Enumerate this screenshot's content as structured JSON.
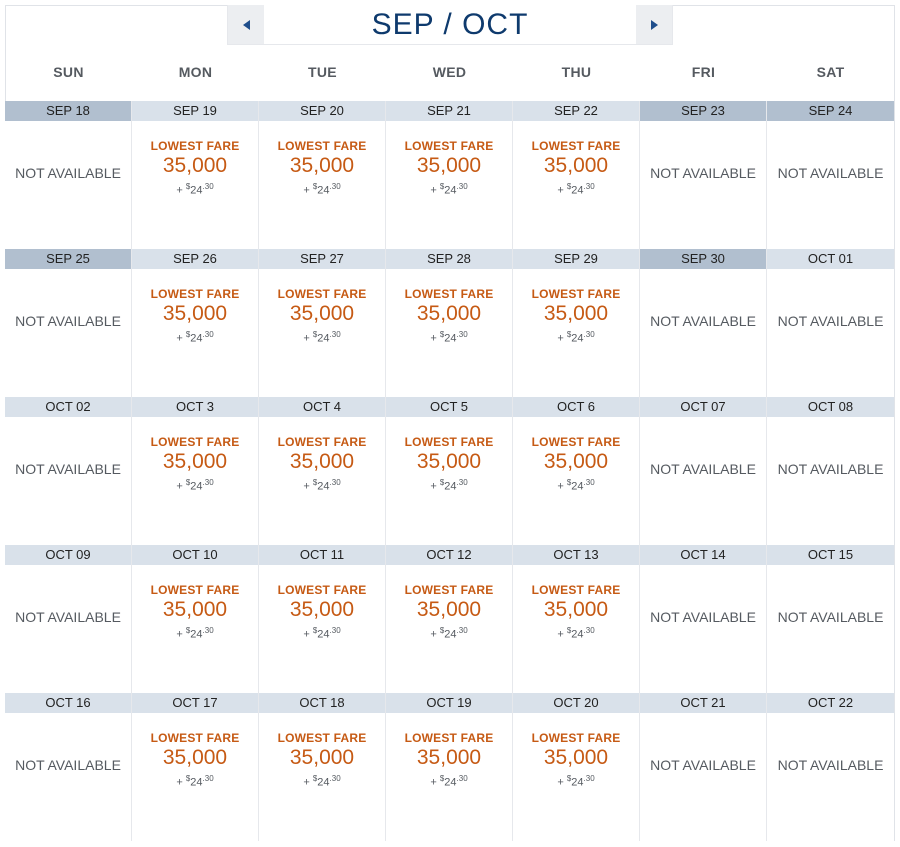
{
  "header": {
    "month_title": "SEP / OCT"
  },
  "days_of_week": [
    "SUN",
    "MON",
    "TUE",
    "WED",
    "THU",
    "FRI",
    "SAT"
  ],
  "fare_label": "LOWEST FARE",
  "miles": "35,000",
  "tax_prefix": "+ ",
  "tax_currency": "$",
  "tax_whole": "24",
  "tax_cents": ".30",
  "not_available": "NOT AVAILABLE",
  "weeks": [
    [
      "SEP 18",
      "SEP 19",
      "SEP 20",
      "SEP 21",
      "SEP 22",
      "SEP 23",
      "SEP 24"
    ],
    [
      "SEP 25",
      "SEP 26",
      "SEP 27",
      "SEP 28",
      "SEP 29",
      "SEP 30",
      "OCT 01"
    ],
    [
      "OCT 02",
      "OCT 3",
      "OCT 4",
      "OCT 5",
      "OCT 6",
      "OCT 07",
      "OCT 08"
    ],
    [
      "OCT 09",
      "OCT 10",
      "OCT 11",
      "OCT 12",
      "OCT 13",
      "OCT 14",
      "OCT 15"
    ],
    [
      "OCT 16",
      "OCT 17",
      "OCT 18",
      "OCT 19",
      "OCT 20",
      "OCT 21",
      "OCT 22"
    ]
  ],
  "available": [
    [
      false,
      true,
      true,
      true,
      true,
      false,
      false
    ],
    [
      false,
      true,
      true,
      true,
      true,
      false,
      false
    ],
    [
      false,
      true,
      true,
      true,
      true,
      false,
      false
    ],
    [
      false,
      true,
      true,
      true,
      true,
      false,
      false
    ],
    [
      false,
      true,
      true,
      true,
      true,
      false,
      false
    ]
  ],
  "highlighted_dates": [
    [
      true,
      false,
      false,
      false,
      false,
      true,
      true
    ],
    [
      true,
      false,
      false,
      false,
      false,
      true,
      false
    ],
    [
      false,
      false,
      false,
      false,
      false,
      false,
      false
    ],
    [
      false,
      false,
      false,
      false,
      false,
      false,
      false
    ],
    [
      false,
      false,
      false,
      false,
      false,
      false,
      false
    ]
  ],
  "icons": {
    "prev": "arrow-left-icon",
    "next": "arrow-right-icon"
  },
  "colors": {
    "title": "#0e3a6d",
    "fare": "#c65a14",
    "date_bar": "#d9e1ea",
    "date_bar_highlight": "#b1bfcf"
  }
}
